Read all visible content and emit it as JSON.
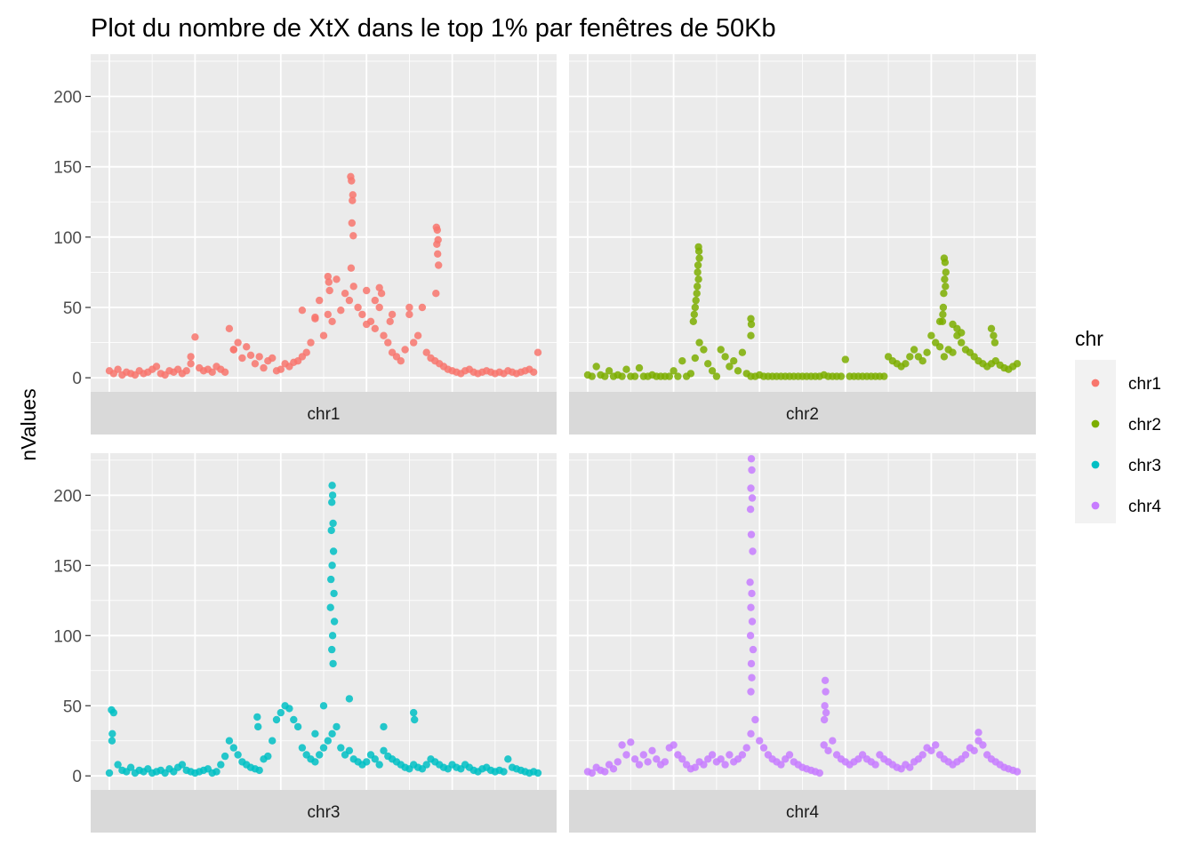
{
  "chart_data": {
    "type": "scatter",
    "title": "Plot du nombre de XtX dans le top 1% par fenêtres de 50Kb",
    "xlabel": "",
    "ylabel": "nValues",
    "ylim": [
      -10,
      230
    ],
    "yticks": [
      0,
      50,
      100,
      150,
      200
    ],
    "grid": true,
    "facet_by": "chr",
    "legend": {
      "title": "chr",
      "placement": "right",
      "entries": [
        "chr1",
        "chr2",
        "chr3",
        "chr4"
      ]
    },
    "colors": {
      "chr1": "#F8766D",
      "chr2": "#7CAE00",
      "chr3": "#00BFC4",
      "chr4": "#C77CFF"
    },
    "panels": [
      {
        "label": "chr1",
        "color": "#F8766D",
        "x": [
          0.0,
          0.01,
          0.02,
          0.03,
          0.04,
          0.05,
          0.06,
          0.07,
          0.08,
          0.09,
          0.1,
          0.11,
          0.12,
          0.13,
          0.14,
          0.15,
          0.16,
          0.17,
          0.18,
          0.19,
          0.2,
          0.21,
          0.22,
          0.23,
          0.24,
          0.25,
          0.26,
          0.27,
          0.28,
          0.29,
          0.3,
          0.31,
          0.32,
          0.33,
          0.34,
          0.35,
          0.36,
          0.37,
          0.38,
          0.39,
          0.4,
          0.41,
          0.42,
          0.43,
          0.44,
          0.45,
          0.46,
          0.47,
          0.48,
          0.49,
          0.5,
          0.51,
          0.52,
          0.53,
          0.54,
          0.55,
          0.56,
          0.57,
          0.58,
          0.59,
          0.6,
          0.61,
          0.62,
          0.63,
          0.64,
          0.65,
          0.66,
          0.67,
          0.68,
          0.69,
          0.7,
          0.71,
          0.72,
          0.73,
          0.74,
          0.75,
          0.76,
          0.77,
          0.78,
          0.79,
          0.8,
          0.81,
          0.82,
          0.83,
          0.84,
          0.85,
          0.86,
          0.87,
          0.88,
          0.89,
          0.9,
          0.91,
          0.92,
          0.93,
          0.94,
          0.95,
          0.96,
          0.97,
          0.98,
          0.99,
          1.0,
          0.563,
          0.565,
          0.568,
          0.567,
          0.566,
          0.564,
          0.569,
          0.763,
          0.765,
          0.767,
          0.764,
          0.766,
          0.762,
          0.768,
          0.51,
          0.512,
          0.514,
          0.63,
          0.635,
          0.66,
          0.655,
          0.62,
          0.6,
          0.7,
          0.45,
          0.48,
          0.29,
          0.19
        ],
        "y": [
          5,
          3,
          6,
          2,
          4,
          3,
          2,
          5,
          3,
          4,
          6,
          8,
          3,
          2,
          5,
          4,
          6,
          3,
          5,
          10,
          29,
          7,
          5,
          6,
          4,
          8,
          6,
          4,
          35,
          20,
          25,
          14,
          22,
          16,
          10,
          15,
          7,
          12,
          14,
          5,
          6,
          10,
          8,
          11,
          12,
          15,
          18,
          25,
          43,
          55,
          30,
          45,
          40,
          70,
          48,
          60,
          55,
          65,
          50,
          45,
          62,
          40,
          35,
          50,
          30,
          25,
          18,
          15,
          12,
          20,
          45,
          25,
          30,
          50,
          18,
          14,
          12,
          10,
          8,
          6,
          5,
          4,
          3,
          5,
          6,
          4,
          3,
          4,
          5,
          4,
          3,
          4,
          3,
          5,
          4,
          3,
          4,
          5,
          6,
          4,
          18,
          143,
          140,
          130,
          126,
          110,
          78,
          101,
          107,
          105,
          98,
          95,
          88,
          60,
          80,
          72,
          68,
          62,
          64,
          60,
          45,
          40,
          55,
          38,
          50,
          48,
          42,
          20,
          15
        ],
        "ticks_x": [
          0.0,
          0.2,
          0.4,
          0.6,
          0.8,
          1.0
        ]
      },
      {
        "label": "chr2",
        "color": "#7CAE00",
        "x": [
          0.0,
          0.01,
          0.02,
          0.03,
          0.04,
          0.05,
          0.06,
          0.07,
          0.08,
          0.09,
          0.1,
          0.11,
          0.12,
          0.13,
          0.14,
          0.15,
          0.16,
          0.17,
          0.18,
          0.19,
          0.2,
          0.21,
          0.22,
          0.23,
          0.24,
          0.25,
          0.26,
          0.27,
          0.28,
          0.29,
          0.3,
          0.31,
          0.32,
          0.33,
          0.34,
          0.35,
          0.36,
          0.37,
          0.38,
          0.39,
          0.4,
          0.41,
          0.42,
          0.43,
          0.44,
          0.45,
          0.46,
          0.47,
          0.48,
          0.49,
          0.5,
          0.51,
          0.52,
          0.53,
          0.54,
          0.55,
          0.56,
          0.57,
          0.58,
          0.59,
          0.6,
          0.61,
          0.62,
          0.63,
          0.64,
          0.65,
          0.66,
          0.67,
          0.68,
          0.69,
          0.7,
          0.71,
          0.72,
          0.73,
          0.74,
          0.75,
          0.76,
          0.77,
          0.78,
          0.79,
          0.8,
          0.81,
          0.82,
          0.83,
          0.84,
          0.85,
          0.86,
          0.87,
          0.88,
          0.89,
          0.9,
          0.91,
          0.92,
          0.93,
          0.94,
          0.95,
          0.96,
          0.97,
          0.98,
          0.99,
          1.0,
          0.258,
          0.259,
          0.26,
          0.257,
          0.256,
          0.258,
          0.255,
          0.254,
          0.252,
          0.25,
          0.248,
          0.246,
          0.83,
          0.832,
          0.834,
          0.831,
          0.833,
          0.829,
          0.828,
          0.827,
          0.826,
          0.38,
          0.381,
          0.38,
          0.86,
          0.87,
          0.85,
          0.82,
          0.94,
          0.945,
          0.948
        ],
        "y": [
          2,
          1,
          8,
          2,
          1,
          5,
          1,
          2,
          1,
          6,
          1,
          1,
          7,
          1,
          1,
          2,
          1,
          1,
          1,
          1,
          5,
          1,
          12,
          1,
          3,
          14,
          25,
          20,
          10,
          5,
          1,
          20,
          15,
          8,
          12,
          5,
          18,
          3,
          1,
          1,
          2,
          1,
          1,
          1,
          1,
          1,
          1,
          1,
          1,
          1,
          1,
          1,
          1,
          1,
          1,
          2,
          1,
          1,
          1,
          1,
          13,
          1,
          1,
          1,
          1,
          1,
          1,
          1,
          1,
          1,
          15,
          12,
          10,
          8,
          10,
          15,
          20,
          15,
          12,
          18,
          30,
          25,
          22,
          15,
          20,
          18,
          30,
          25,
          20,
          18,
          15,
          12,
          10,
          8,
          10,
          12,
          9,
          7,
          6,
          8,
          10,
          93,
          90,
          85,
          80,
          75,
          70,
          65,
          60,
          55,
          50,
          45,
          40,
          85,
          82,
          75,
          70,
          65,
          60,
          50,
          45,
          40,
          42,
          38,
          30,
          35,
          32,
          38,
          40,
          35,
          30,
          25
        ],
        "ticks_x": [
          0.0,
          0.2,
          0.4,
          0.6,
          0.8,
          1.0
        ]
      },
      {
        "label": "chr3",
        "color": "#00BFC4",
        "x": [
          0.0,
          0.01,
          0.02,
          0.03,
          0.04,
          0.05,
          0.06,
          0.07,
          0.08,
          0.09,
          0.1,
          0.11,
          0.12,
          0.13,
          0.14,
          0.15,
          0.16,
          0.17,
          0.18,
          0.19,
          0.2,
          0.21,
          0.22,
          0.23,
          0.24,
          0.25,
          0.26,
          0.27,
          0.28,
          0.29,
          0.3,
          0.31,
          0.32,
          0.33,
          0.34,
          0.35,
          0.36,
          0.37,
          0.38,
          0.39,
          0.4,
          0.41,
          0.42,
          0.43,
          0.44,
          0.45,
          0.46,
          0.47,
          0.48,
          0.49,
          0.5,
          0.51,
          0.52,
          0.53,
          0.54,
          0.55,
          0.56,
          0.57,
          0.58,
          0.59,
          0.6,
          0.61,
          0.62,
          0.63,
          0.64,
          0.65,
          0.66,
          0.67,
          0.68,
          0.69,
          0.7,
          0.71,
          0.72,
          0.73,
          0.74,
          0.75,
          0.76,
          0.77,
          0.78,
          0.79,
          0.8,
          0.81,
          0.82,
          0.83,
          0.84,
          0.85,
          0.86,
          0.87,
          0.88,
          0.89,
          0.9,
          0.91,
          0.92,
          0.93,
          0.94,
          0.95,
          0.96,
          0.97,
          0.98,
          0.99,
          1.0,
          0.52,
          0.521,
          0.519,
          0.522,
          0.518,
          0.523,
          0.52,
          0.517,
          0.524,
          0.516,
          0.525,
          0.521,
          0.519,
          0.522,
          0.005,
          0.007,
          0.006,
          0.345,
          0.347,
          0.5,
          0.71,
          0.712,
          0.64,
          0.56,
          0.48
        ],
        "y": [
          2,
          45,
          8,
          4,
          3,
          6,
          2,
          4,
          3,
          5,
          2,
          3,
          4,
          2,
          5,
          3,
          6,
          8,
          4,
          3,
          2,
          3,
          4,
          5,
          2,
          3,
          8,
          14,
          25,
          20,
          15,
          10,
          8,
          6,
          5,
          4,
          12,
          14,
          25,
          40,
          45,
          50,
          48,
          40,
          35,
          20,
          15,
          12,
          10,
          15,
          20,
          25,
          30,
          35,
          20,
          15,
          18,
          12,
          10,
          8,
          10,
          15,
          12,
          8,
          18,
          14,
          12,
          10,
          8,
          6,
          5,
          8,
          6,
          5,
          8,
          12,
          10,
          8,
          6,
          5,
          8,
          6,
          5,
          8,
          6,
          4,
          3,
          5,
          6,
          4,
          3,
          4,
          3,
          12,
          6,
          5,
          4,
          3,
          2,
          3,
          2,
          207,
          200,
          195,
          180,
          175,
          160,
          150,
          140,
          130,
          120,
          110,
          100,
          90,
          80,
          47,
          30,
          25,
          42,
          35,
          50,
          45,
          40,
          35,
          55,
          30
        ],
        "ticks_x": [
          0.0,
          0.2,
          0.4,
          0.6,
          0.8,
          1.0
        ]
      },
      {
        "label": "chr4",
        "color": "#C77CFF",
        "x": [
          0.0,
          0.01,
          0.02,
          0.03,
          0.04,
          0.05,
          0.06,
          0.07,
          0.08,
          0.09,
          0.1,
          0.11,
          0.12,
          0.13,
          0.14,
          0.15,
          0.16,
          0.17,
          0.18,
          0.19,
          0.2,
          0.21,
          0.22,
          0.23,
          0.24,
          0.25,
          0.26,
          0.27,
          0.28,
          0.29,
          0.3,
          0.31,
          0.32,
          0.33,
          0.34,
          0.35,
          0.36,
          0.37,
          0.38,
          0.39,
          0.4,
          0.41,
          0.42,
          0.43,
          0.44,
          0.45,
          0.46,
          0.47,
          0.48,
          0.49,
          0.5,
          0.51,
          0.52,
          0.53,
          0.54,
          0.55,
          0.56,
          0.57,
          0.58,
          0.59,
          0.6,
          0.61,
          0.62,
          0.63,
          0.64,
          0.65,
          0.66,
          0.67,
          0.68,
          0.69,
          0.7,
          0.71,
          0.72,
          0.73,
          0.74,
          0.75,
          0.76,
          0.77,
          0.78,
          0.79,
          0.8,
          0.81,
          0.82,
          0.83,
          0.84,
          0.85,
          0.86,
          0.87,
          0.88,
          0.89,
          0.9,
          0.91,
          0.92,
          0.93,
          0.94,
          0.95,
          0.96,
          0.97,
          0.98,
          0.99,
          1.0,
          0.381,
          0.382,
          0.38,
          0.383,
          0.379,
          0.381,
          0.384,
          0.378,
          0.382,
          0.38,
          0.383,
          0.379,
          0.385,
          0.381,
          0.382,
          0.38,
          0.553,
          0.554,
          0.552,
          0.555,
          0.551,
          0.91
        ],
        "y": [
          3,
          2,
          6,
          4,
          3,
          8,
          5,
          10,
          22,
          15,
          24,
          12,
          8,
          15,
          10,
          18,
          12,
          8,
          10,
          20,
          22,
          15,
          12,
          8,
          5,
          6,
          10,
          8,
          12,
          15,
          10,
          12,
          8,
          15,
          10,
          12,
          15,
          20,
          30,
          40,
          25,
          20,
          15,
          12,
          10,
          8,
          12,
          15,
          10,
          8,
          6,
          5,
          4,
          3,
          2,
          22,
          18,
          25,
          15,
          12,
          10,
          8,
          10,
          12,
          15,
          12,
          10,
          8,
          15,
          12,
          10,
          8,
          6,
          5,
          8,
          6,
          10,
          12,
          15,
          20,
          18,
          22,
          15,
          12,
          10,
          8,
          10,
          12,
          15,
          20,
          18,
          25,
          22,
          15,
          12,
          10,
          8,
          6,
          5,
          4,
          3,
          226,
          218,
          205,
          198,
          190,
          172,
          160,
          138,
          130,
          120,
          110,
          100,
          90,
          80,
          70,
          60,
          68,
          60,
          50,
          45,
          40,
          31
        ],
        "ticks_x": [
          0.0,
          0.2,
          0.4,
          0.6,
          0.8,
          1.0
        ]
      }
    ]
  }
}
